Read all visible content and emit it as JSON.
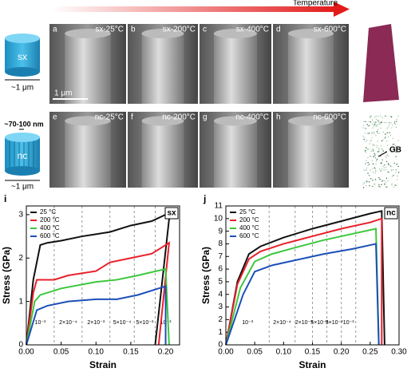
{
  "figure": {
    "arrow_label": "Temperature",
    "sx_label": "sx",
    "sx_size": "~1 μm",
    "nc_wire": "~70-100 nm",
    "nc_label": "nc",
    "nc_size": "~1 μm",
    "panels": [
      {
        "letter": "a",
        "label": "sx-25°C"
      },
      {
        "letter": "b",
        "label": "sx-200°C"
      },
      {
        "letter": "c",
        "label": "sx-400°C"
      },
      {
        "letter": "d",
        "label": "sx-600°C"
      },
      {
        "letter": "e",
        "label": "nc-25°C"
      },
      {
        "letter": "f",
        "label": "nc-200°C"
      },
      {
        "letter": "g",
        "label": "nc-400°C"
      },
      {
        "letter": "h",
        "label": "nc-600°C"
      }
    ],
    "scale_bar": "1 μm",
    "gb_label": "GB"
  },
  "chart_data": [
    {
      "type": "line",
      "panel": "i",
      "tag": "sx",
      "xlabel": "Strain",
      "ylabel": "Stress (GPa)",
      "xlim": [
        0,
        0.22
      ],
      "ylim": [
        0,
        3.2
      ],
      "xticks": [
        {
          "value": 0,
          "label": "0.00"
        },
        {
          "value": 0.05,
          "label": "0.05"
        },
        {
          "value": 0.1,
          "label": "0.10"
        },
        {
          "value": 0.15,
          "label": "0.15"
        },
        {
          "value": 0.2,
          "label": "0.20"
        }
      ],
      "yticks": [
        0,
        1,
        2,
        3
      ],
      "rate_changes": [
        0.04,
        0.08,
        0.12,
        0.155,
        0.185
      ],
      "rate_labels": [
        "10⁻³",
        "2×10⁻⁴",
        "2×10⁻³",
        "5×10⁻⁴",
        "5×10⁻³",
        "10⁻³"
      ],
      "series": [
        {
          "name": "25 °C",
          "color": "#111111",
          "x": [
            0,
            0.01,
            0.02,
            0.03,
            0.05,
            0.08,
            0.1,
            0.12,
            0.15,
            0.18,
            0.2,
            0.205,
            0.185
          ],
          "values": [
            0,
            1.5,
            2.3,
            2.35,
            2.4,
            2.5,
            2.55,
            2.6,
            2.75,
            2.85,
            3.0,
            2.9,
            0
          ]
        },
        {
          "name": "200 °C",
          "color": "#e8202a",
          "x": [
            0,
            0.01,
            0.015,
            0.04,
            0.06,
            0.1,
            0.12,
            0.15,
            0.18,
            0.2,
            0.205,
            0.19
          ],
          "values": [
            0,
            1.2,
            1.5,
            1.5,
            1.6,
            1.7,
            1.9,
            2.0,
            2.1,
            2.3,
            2.35,
            0
          ]
        },
        {
          "name": "400 °C",
          "color": "#3cc83c",
          "x": [
            0,
            0.012,
            0.02,
            0.05,
            0.1,
            0.13,
            0.16,
            0.2,
            0.205
          ],
          "values": [
            0,
            1.0,
            1.15,
            1.3,
            1.45,
            1.5,
            1.6,
            1.75,
            0
          ]
        },
        {
          "name": "600 °C",
          "color": "#1c4fb8",
          "x": [
            0,
            0.015,
            0.03,
            0.06,
            0.1,
            0.13,
            0.16,
            0.2,
            0.2
          ],
          "values": [
            0,
            0.8,
            0.9,
            1.0,
            1.05,
            1.05,
            1.15,
            1.35,
            0
          ]
        }
      ]
    },
    {
      "type": "line",
      "panel": "j",
      "tag": "nc",
      "xlabel": "Strain",
      "ylabel": "Stress (GPa)",
      "xlim": [
        0,
        0.3
      ],
      "ylim": [
        0,
        11
      ],
      "xticks": [
        {
          "value": 0,
          "label": "0.00"
        },
        {
          "value": 0.05,
          "label": "0.05"
        },
        {
          "value": 0.1,
          "label": "0.10"
        },
        {
          "value": 0.15,
          "label": "0.15"
        },
        {
          "value": 0.2,
          "label": "0.20"
        },
        {
          "value": 0.25,
          "label": "0.25"
        },
        {
          "value": 0.3,
          "label": "0.30"
        }
      ],
      "yticks": [
        0,
        1,
        2,
        3,
        4,
        5,
        6,
        7,
        8,
        9,
        10,
        11
      ],
      "rate_changes": [
        0.075,
        0.12,
        0.15,
        0.175,
        0.2,
        0.225
      ],
      "rate_labels": [
        "10⁻³",
        "2×10⁻⁴",
        "2×10⁻³",
        "5×10⁻⁴",
        "5×10⁻³",
        "10⁻³"
      ],
      "series": [
        {
          "name": "25 °C",
          "color": "#111111",
          "x": [
            0,
            0.02,
            0.04,
            0.06,
            0.1,
            0.15,
            0.2,
            0.25,
            0.27,
            0.275
          ],
          "values": [
            0,
            5,
            7.2,
            7.8,
            8.5,
            9.2,
            9.8,
            10.4,
            10.6,
            0
          ]
        },
        {
          "name": "200 °C",
          "color": "#e8202a",
          "x": [
            0,
            0.02,
            0.04,
            0.06,
            0.1,
            0.15,
            0.2,
            0.25,
            0.27,
            0.27
          ],
          "values": [
            0,
            4.8,
            6.8,
            7.4,
            8,
            8.6,
            9.2,
            9.7,
            10,
            0
          ]
        },
        {
          "name": "400 °C",
          "color": "#3cc83c",
          "x": [
            0,
            0.025,
            0.05,
            0.08,
            0.12,
            0.17,
            0.22,
            0.26,
            0.265
          ],
          "values": [
            0,
            4.5,
            6.6,
            7.2,
            7.7,
            8.3,
            8.8,
            9.2,
            0
          ]
        },
        {
          "name": "600 °C",
          "color": "#1c4fb8",
          "x": [
            0,
            0.03,
            0.05,
            0.08,
            0.12,
            0.17,
            0.22,
            0.26,
            0.265
          ],
          "values": [
            0,
            4,
            5.8,
            6.3,
            6.7,
            7.2,
            7.6,
            8,
            0
          ]
        }
      ]
    }
  ]
}
